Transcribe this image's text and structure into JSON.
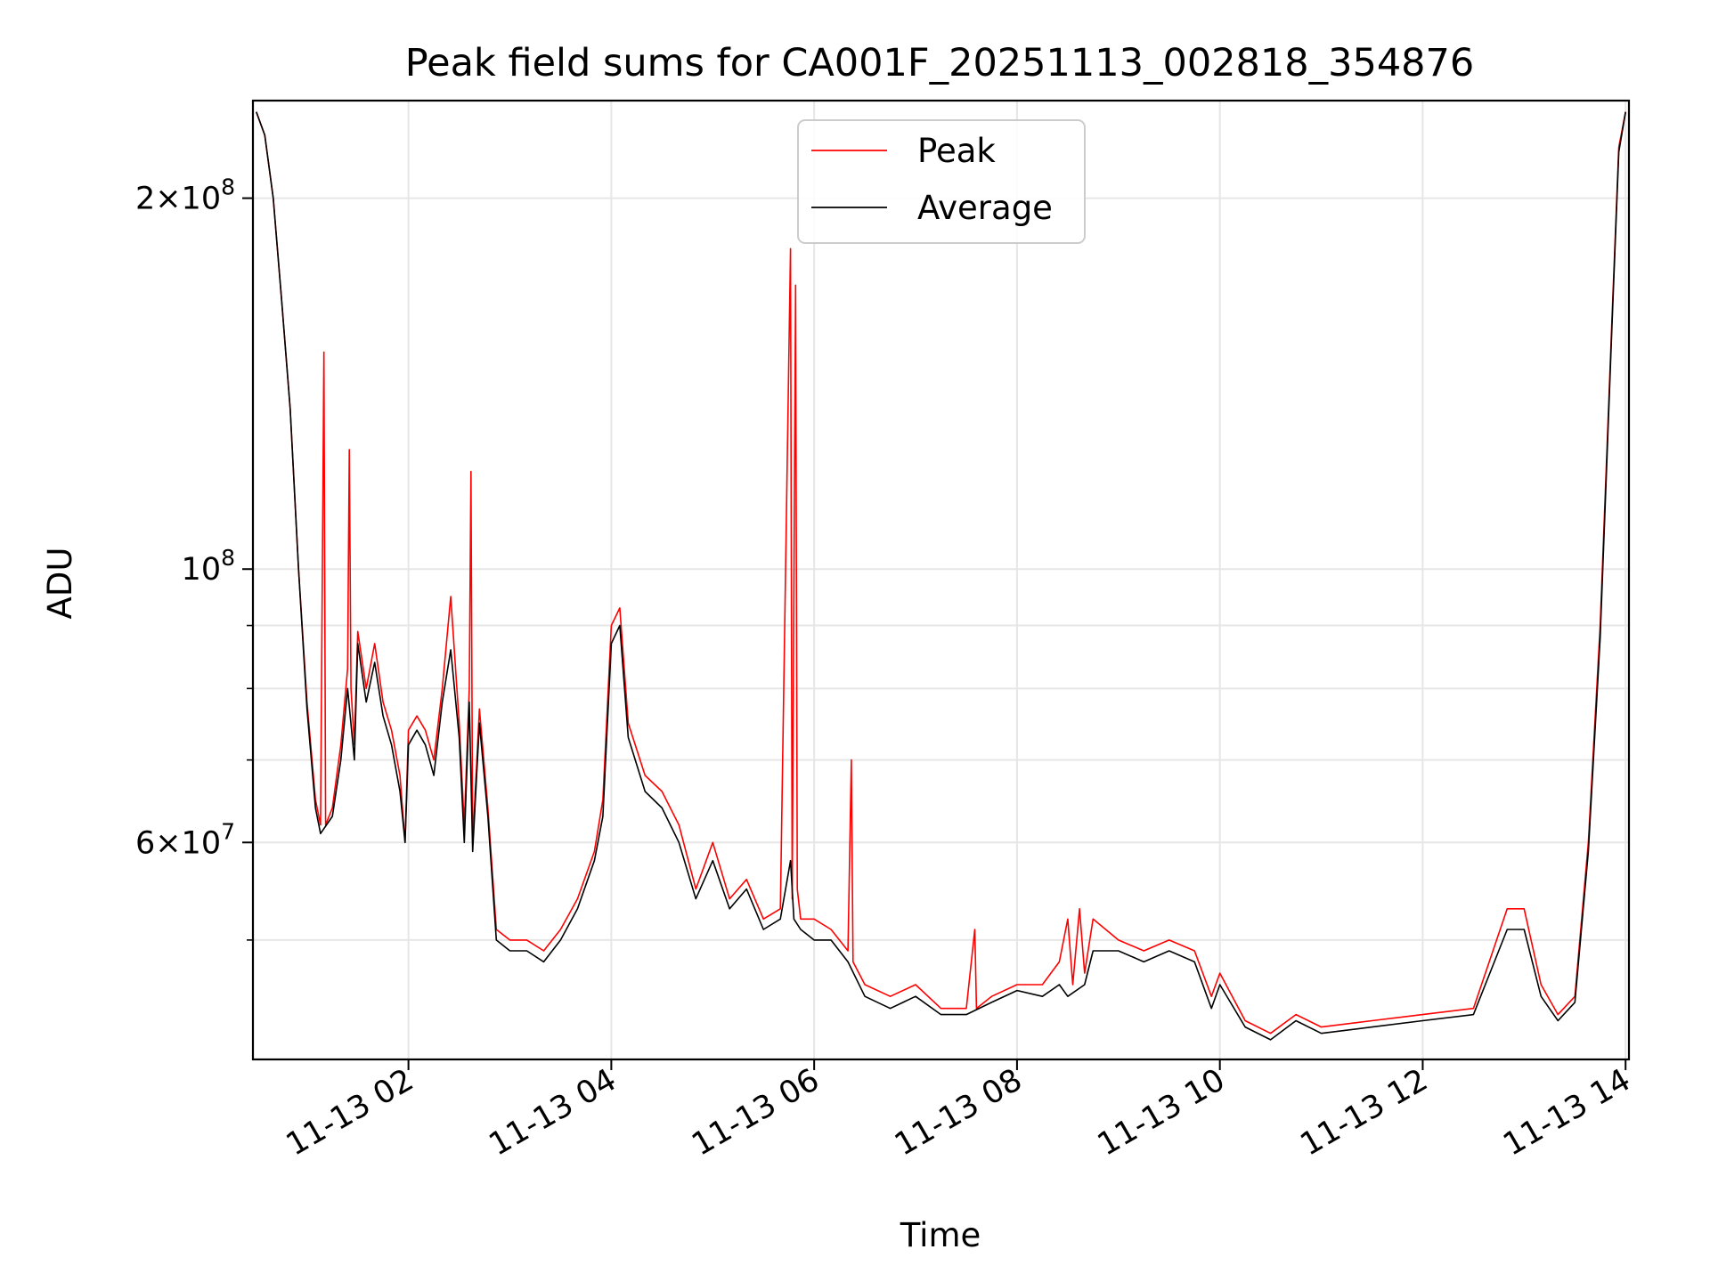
{
  "chart_data": {
    "type": "line",
    "title": "Peak field sums for CA001F_20251113_002818_354876",
    "xlabel": "Time",
    "ylabel": "ADU",
    "yscale": "log",
    "ylim": [
      40000000,
      240000000
    ],
    "xlim": [
      "2025-11-13 00:28",
      "2025-11-13 14:02"
    ],
    "grid": true,
    "legend": "upper center",
    "x_ticks": [
      "11-13 02",
      "11-13 04",
      "11-13 06",
      "11-13 08",
      "11-13 10",
      "11-13 12",
      "11-13 14"
    ],
    "y_ticks": [
      {
        "value": 200000000,
        "mant": "2",
        "exp": "8"
      },
      {
        "value": 100000000,
        "mant": "",
        "exp": "8"
      },
      {
        "value": 60000000,
        "mant": "6",
        "exp": "7"
      }
    ],
    "y_minor_ticks": [
      50000000,
      70000000,
      80000000,
      90000000
    ],
    "series": [
      {
        "name": "Peak",
        "color": "#ff0000",
        "points": [
          [
            "2025-11-13 00:30",
            235000000
          ],
          [
            "2025-11-13 00:35",
            225000000
          ],
          [
            "2025-11-13 00:40",
            200000000
          ],
          [
            "2025-11-13 00:45",
            165000000
          ],
          [
            "2025-11-13 00:50",
            135000000
          ],
          [
            "2025-11-13 00:55",
            100000000
          ],
          [
            "2025-11-13 01:00",
            78000000
          ],
          [
            "2025-11-13 01:05",
            65000000
          ],
          [
            "2025-11-13 01:08",
            62000000
          ],
          [
            "2025-11-13 01:10",
            150000000
          ],
          [
            "2025-11-13 01:11",
            62000000
          ],
          [
            "2025-11-13 01:15",
            64000000
          ],
          [
            "2025-11-13 01:20",
            72000000
          ],
          [
            "2025-11-13 01:24",
            83000000
          ],
          [
            "2025-11-13 01:25",
            125000000
          ],
          [
            "2025-11-13 01:26",
            80000000
          ],
          [
            "2025-11-13 01:28",
            72000000
          ],
          [
            "2025-11-13 01:30",
            89000000
          ],
          [
            "2025-11-13 01:35",
            80000000
          ],
          [
            "2025-11-13 01:40",
            87000000
          ],
          [
            "2025-11-13 01:45",
            78000000
          ],
          [
            "2025-11-13 01:50",
            74000000
          ],
          [
            "2025-11-13 01:55",
            68000000
          ],
          [
            "2025-11-13 01:58",
            60000000
          ],
          [
            "2025-11-13 02:00",
            74000000
          ],
          [
            "2025-11-13 02:05",
            76000000
          ],
          [
            "2025-11-13 02:10",
            74000000
          ],
          [
            "2025-11-13 02:15",
            70000000
          ],
          [
            "2025-11-13 02:20",
            80000000
          ],
          [
            "2025-11-13 02:25",
            95000000
          ],
          [
            "2025-11-13 02:30",
            75000000
          ],
          [
            "2025-11-13 02:33",
            62000000
          ],
          [
            "2025-11-13 02:36",
            80000000
          ],
          [
            "2025-11-13 02:37",
            120000000
          ],
          [
            "2025-11-13 02:38",
            60000000
          ],
          [
            "2025-11-13 02:42",
            77000000
          ],
          [
            "2025-11-13 02:47",
            64000000
          ],
          [
            "2025-11-13 02:52",
            51000000
          ],
          [
            "2025-11-13 03:00",
            50000000
          ],
          [
            "2025-11-13 03:10",
            50000000
          ],
          [
            "2025-11-13 03:20",
            49000000
          ],
          [
            "2025-11-13 03:30",
            51000000
          ],
          [
            "2025-11-13 03:40",
            54000000
          ],
          [
            "2025-11-13 03:50",
            59000000
          ],
          [
            "2025-11-13 03:55",
            65000000
          ],
          [
            "2025-11-13 04:00",
            90000000
          ],
          [
            "2025-11-13 04:05",
            93000000
          ],
          [
            "2025-11-13 04:10",
            75000000
          ],
          [
            "2025-11-13 04:20",
            68000000
          ],
          [
            "2025-11-13 04:30",
            66000000
          ],
          [
            "2025-11-13 04:40",
            62000000
          ],
          [
            "2025-11-13 04:50",
            55000000
          ],
          [
            "2025-11-13 05:00",
            60000000
          ],
          [
            "2025-11-13 05:10",
            54000000
          ],
          [
            "2025-11-13 05:20",
            56000000
          ],
          [
            "2025-11-13 05:30",
            52000000
          ],
          [
            "2025-11-13 05:40",
            53000000
          ],
          [
            "2025-11-13 05:46",
            182000000
          ],
          [
            "2025-11-13 05:47",
            54000000
          ],
          [
            "2025-11-13 05:49",
            170000000
          ],
          [
            "2025-11-13 05:50",
            55000000
          ],
          [
            "2025-11-13 05:52",
            52000000
          ],
          [
            "2025-11-13 06:00",
            52000000
          ],
          [
            "2025-11-13 06:10",
            51000000
          ],
          [
            "2025-11-13 06:20",
            49000000
          ],
          [
            "2025-11-13 06:22",
            70000000
          ],
          [
            "2025-11-13 06:23",
            48000000
          ],
          [
            "2025-11-13 06:30",
            46000000
          ],
          [
            "2025-11-13 06:45",
            45000000
          ],
          [
            "2025-11-13 07:00",
            46000000
          ],
          [
            "2025-11-13 07:15",
            44000000
          ],
          [
            "2025-11-13 07:30",
            44000000
          ],
          [
            "2025-11-13 07:35",
            51000000
          ],
          [
            "2025-11-13 07:36",
            44000000
          ],
          [
            "2025-11-13 07:45",
            45000000
          ],
          [
            "2025-11-13 08:00",
            46000000
          ],
          [
            "2025-11-13 08:15",
            46000000
          ],
          [
            "2025-11-13 08:25",
            48000000
          ],
          [
            "2025-11-13 08:30",
            52000000
          ],
          [
            "2025-11-13 08:33",
            46000000
          ],
          [
            "2025-11-13 08:37",
            53000000
          ],
          [
            "2025-11-13 08:40",
            47000000
          ],
          [
            "2025-11-13 08:45",
            52000000
          ],
          [
            "2025-11-13 09:00",
            50000000
          ],
          [
            "2025-11-13 09:15",
            49000000
          ],
          [
            "2025-11-13 09:30",
            50000000
          ],
          [
            "2025-11-13 09:45",
            49000000
          ],
          [
            "2025-11-13 09:55",
            45000000
          ],
          [
            "2025-11-13 10:00",
            47000000
          ],
          [
            "2025-11-13 10:15",
            43000000
          ],
          [
            "2025-11-13 10:30",
            42000000
          ],
          [
            "2025-11-13 10:45",
            43500000
          ],
          [
            "2025-11-13 11:00",
            42500000
          ],
          [
            "2025-11-13 11:30",
            43000000
          ],
          [
            "2025-11-13 12:00",
            43500000
          ],
          [
            "2025-11-13 12:30",
            44000000
          ],
          [
            "2025-11-13 12:50",
            53000000
          ],
          [
            "2025-11-13 13:00",
            53000000
          ],
          [
            "2025-11-13 13:10",
            46000000
          ],
          [
            "2025-11-13 13:20",
            43500000
          ],
          [
            "2025-11-13 13:30",
            45000000
          ],
          [
            "2025-11-13 13:38",
            60000000
          ],
          [
            "2025-11-13 13:45",
            90000000
          ],
          [
            "2025-11-13 13:52",
            160000000
          ],
          [
            "2025-11-13 13:56",
            220000000
          ],
          [
            "2025-11-13 14:00",
            235000000
          ]
        ]
      },
      {
        "name": "Average",
        "color": "#000000",
        "points": [
          [
            "2025-11-13 00:30",
            235000000
          ],
          [
            "2025-11-13 00:35",
            225000000
          ],
          [
            "2025-11-13 00:40",
            200000000
          ],
          [
            "2025-11-13 00:45",
            165000000
          ],
          [
            "2025-11-13 00:50",
            135000000
          ],
          [
            "2025-11-13 00:55",
            100000000
          ],
          [
            "2025-11-13 01:00",
            77000000
          ],
          [
            "2025-11-13 01:05",
            64000000
          ],
          [
            "2025-11-13 01:08",
            61000000
          ],
          [
            "2025-11-13 01:15",
            63000000
          ],
          [
            "2025-11-13 01:20",
            70000000
          ],
          [
            "2025-11-13 01:24",
            80000000
          ],
          [
            "2025-11-13 01:28",
            70000000
          ],
          [
            "2025-11-13 01:30",
            87000000
          ],
          [
            "2025-11-13 01:35",
            78000000
          ],
          [
            "2025-11-13 01:40",
            84000000
          ],
          [
            "2025-11-13 01:45",
            76000000
          ],
          [
            "2025-11-13 01:50",
            72000000
          ],
          [
            "2025-11-13 01:55",
            66000000
          ],
          [
            "2025-11-13 01:58",
            60000000
          ],
          [
            "2025-11-13 02:00",
            72000000
          ],
          [
            "2025-11-13 02:05",
            74000000
          ],
          [
            "2025-11-13 02:10",
            72000000
          ],
          [
            "2025-11-13 02:15",
            68000000
          ],
          [
            "2025-11-13 02:20",
            78000000
          ],
          [
            "2025-11-13 02:25",
            86000000
          ],
          [
            "2025-11-13 02:30",
            73000000
          ],
          [
            "2025-11-13 02:33",
            60000000
          ],
          [
            "2025-11-13 02:36",
            78000000
          ],
          [
            "2025-11-13 02:38",
            59000000
          ],
          [
            "2025-11-13 02:42",
            75000000
          ],
          [
            "2025-11-13 02:47",
            63000000
          ],
          [
            "2025-11-13 02:52",
            50000000
          ],
          [
            "2025-11-13 03:00",
            49000000
          ],
          [
            "2025-11-13 03:10",
            49000000
          ],
          [
            "2025-11-13 03:20",
            48000000
          ],
          [
            "2025-11-13 03:30",
            50000000
          ],
          [
            "2025-11-13 03:40",
            53000000
          ],
          [
            "2025-11-13 03:50",
            58000000
          ],
          [
            "2025-11-13 03:55",
            63000000
          ],
          [
            "2025-11-13 04:00",
            87000000
          ],
          [
            "2025-11-13 04:05",
            90000000
          ],
          [
            "2025-11-13 04:10",
            73000000
          ],
          [
            "2025-11-13 04:20",
            66000000
          ],
          [
            "2025-11-13 04:30",
            64000000
          ],
          [
            "2025-11-13 04:40",
            60000000
          ],
          [
            "2025-11-13 04:50",
            54000000
          ],
          [
            "2025-11-13 05:00",
            58000000
          ],
          [
            "2025-11-13 05:10",
            53000000
          ],
          [
            "2025-11-13 05:20",
            55000000
          ],
          [
            "2025-11-13 05:30",
            51000000
          ],
          [
            "2025-11-13 05:40",
            52000000
          ],
          [
            "2025-11-13 05:46",
            58000000
          ],
          [
            "2025-11-13 05:48",
            52000000
          ],
          [
            "2025-11-13 05:52",
            51000000
          ],
          [
            "2025-11-13 06:00",
            50000000
          ],
          [
            "2025-11-13 06:10",
            50000000
          ],
          [
            "2025-11-13 06:20",
            48000000
          ],
          [
            "2025-11-13 06:30",
            45000000
          ],
          [
            "2025-11-13 06:45",
            44000000
          ],
          [
            "2025-11-13 07:00",
            45000000
          ],
          [
            "2025-11-13 07:15",
            43500000
          ],
          [
            "2025-11-13 07:30",
            43500000
          ],
          [
            "2025-11-13 07:45",
            44500000
          ],
          [
            "2025-11-13 08:00",
            45500000
          ],
          [
            "2025-11-13 08:15",
            45000000
          ],
          [
            "2025-11-13 08:25",
            46000000
          ],
          [
            "2025-11-13 08:30",
            45000000
          ],
          [
            "2025-11-13 08:40",
            46000000
          ],
          [
            "2025-11-13 08:45",
            49000000
          ],
          [
            "2025-11-13 09:00",
            49000000
          ],
          [
            "2025-11-13 09:15",
            48000000
          ],
          [
            "2025-11-13 09:30",
            49000000
          ],
          [
            "2025-11-13 09:45",
            48000000
          ],
          [
            "2025-11-13 09:55",
            44000000
          ],
          [
            "2025-11-13 10:00",
            46000000
          ],
          [
            "2025-11-13 10:15",
            42500000
          ],
          [
            "2025-11-13 10:30",
            41500000
          ],
          [
            "2025-11-13 10:45",
            43000000
          ],
          [
            "2025-11-13 11:00",
            42000000
          ],
          [
            "2025-11-13 11:30",
            42500000
          ],
          [
            "2025-11-13 12:00",
            43000000
          ],
          [
            "2025-11-13 12:30",
            43500000
          ],
          [
            "2025-11-13 12:50",
            51000000
          ],
          [
            "2025-11-13 13:00",
            51000000
          ],
          [
            "2025-11-13 13:10",
            45000000
          ],
          [
            "2025-11-13 13:20",
            43000000
          ],
          [
            "2025-11-13 13:30",
            44500000
          ],
          [
            "2025-11-13 13:38",
            59000000
          ],
          [
            "2025-11-13 13:45",
            88000000
          ],
          [
            "2025-11-13 13:52",
            158000000
          ],
          [
            "2025-11-13 13:56",
            218000000
          ],
          [
            "2025-11-13 14:00",
            235000000
          ]
        ]
      }
    ]
  }
}
